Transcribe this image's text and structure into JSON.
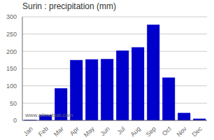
{
  "chart_data": {
    "type": "bar",
    "title": "Surin : precipitation (mm)",
    "categories": [
      "Jan",
      "Feb",
      "Mar",
      "Apr",
      "May",
      "Jun",
      "Jul",
      "Aug",
      "Sep",
      "Oct",
      "Nov",
      "Dec"
    ],
    "values": [
      2,
      15,
      93,
      175,
      177,
      178,
      202,
      212,
      277,
      124,
      22,
      5
    ],
    "color": "#0000CC",
    "ylim": [
      0,
      300
    ],
    "yticks": [
      0,
      50,
      100,
      150,
      200,
      250,
      300
    ],
    "grid": true,
    "annotations": [
      "www.allmetsat.com"
    ]
  }
}
